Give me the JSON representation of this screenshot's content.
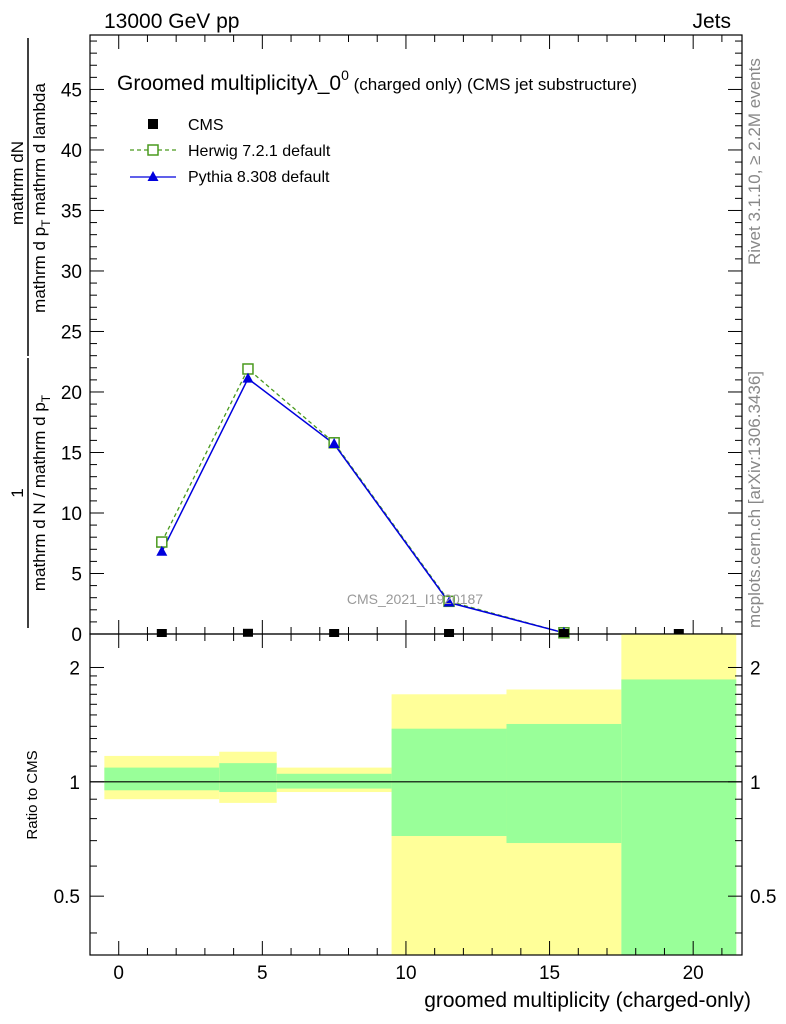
{
  "header": {
    "energy": "13000 GeV pp",
    "category": "Jets"
  },
  "side_labels": {
    "rivet": "Rivet 3.1.10, ≥ 2.2M events",
    "mcplots": "mcplots.cern.ch [arXiv:1306.3436]"
  },
  "colors": {
    "herwig": "#4a9a1e",
    "pythia": "#0000dd",
    "band_green": "#99ff99",
    "band_yellow": "#ffff99"
  },
  "chart_data": [
    {
      "type": "line",
      "title": "Groomed multiplicityλ_0",
      "title_sup": "0",
      "title_suffix": " (charged only) (CMS jet substructure)",
      "watermark": "CMS_2021_I1920187",
      "ylabel": {
        "numerator": "1",
        "denominator": "mathrm d N / mathrm d p",
        "sub": "T",
        "dnumerator": "mathrm dN",
        "ddenominator": "mathrm d p",
        "dsub": "T",
        "dsuffix": "mathrm d lambda",
        "dmid": "mathrm d"
      },
      "xlim": [
        -1,
        21.7
      ],
      "ylim": [
        0,
        49.5
      ],
      "yticks": [
        0,
        5,
        10,
        15,
        20,
        25,
        30,
        35,
        40,
        45
      ],
      "yticklabels": [
        "0",
        "5",
        "10",
        "15",
        "20",
        "25",
        "30",
        "35",
        "40",
        "45"
      ],
      "grid": false,
      "legend_position": "top-left",
      "series": [
        {
          "name": "CMS",
          "marker": "filled-square",
          "x": [
            1.5,
            4.5,
            7.5,
            11.5,
            15.5,
            19.5
          ],
          "y": [
            0.05,
            0.1,
            0.05,
            0.03,
            0.01,
            0.01
          ]
        },
        {
          "name": "Herwig 7.2.1 default",
          "marker": "open-square",
          "line": "dashed",
          "x": [
            1.5,
            4.5,
            7.5,
            11.5,
            15.5
          ],
          "y": [
            7.6,
            21.9,
            15.8,
            2.7,
            0.1
          ]
        },
        {
          "name": "Pythia 8.308 default",
          "marker": "filled-triangle",
          "line": "solid",
          "x": [
            1.5,
            4.5,
            7.5,
            11.5,
            15.5
          ],
          "y": [
            6.8,
            21.1,
            15.7,
            2.6,
            0.1
          ]
        }
      ]
    },
    {
      "type": "area",
      "ylabel": "Ratio to CMS",
      "xlabel": "groomed multiplicity (charged-only)",
      "scale": "log",
      "ylim": [
        0.35,
        2.45
      ],
      "yticks": [
        0.5,
        1,
        2
      ],
      "yticklabels": [
        "0.5",
        "1",
        "2"
      ],
      "xticks": [
        0,
        5,
        10,
        15,
        20
      ],
      "xticklabels": [
        "0",
        "5",
        "10",
        "15",
        "20"
      ],
      "reference": 1,
      "bins": [
        {
          "lo": -0.5,
          "hi": 3.5,
          "yellow": [
            0.9,
            1.17
          ],
          "green": [
            0.95,
            1.09
          ]
        },
        {
          "lo": 3.5,
          "hi": 5.5,
          "yellow": [
            0.88,
            1.2
          ],
          "green": [
            0.94,
            1.12
          ]
        },
        {
          "lo": 5.5,
          "hi": 9.5,
          "yellow": [
            0.94,
            1.09
          ],
          "green": [
            0.96,
            1.05
          ]
        },
        {
          "lo": 9.5,
          "hi": 13.5,
          "yellow": [
            0.3,
            1.7
          ],
          "green": [
            0.72,
            1.38
          ]
        },
        {
          "lo": 13.5,
          "hi": 17.5,
          "yellow": [
            0.3,
            1.75
          ],
          "green": [
            0.69,
            1.42
          ]
        },
        {
          "lo": 17.5,
          "hi": 21.5,
          "yellow": [
            0.3,
            2.6
          ],
          "green": [
            0.3,
            1.86
          ]
        }
      ]
    }
  ]
}
